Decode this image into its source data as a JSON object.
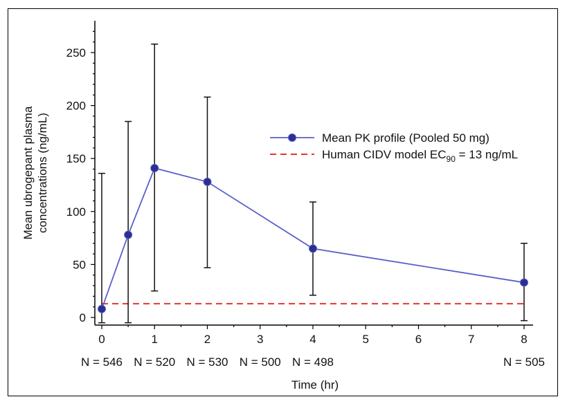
{
  "chart_data": {
    "type": "line",
    "title": "",
    "xlabel": "Time (hr)",
    "ylabel_line1": "Mean ubrogepant plasma",
    "ylabel_line2": "concentrations (ng/mL)",
    "xlim": [
      0,
      8
    ],
    "ylim": [
      0,
      250
    ],
    "x_ticks": [
      0,
      1,
      2,
      3,
      4,
      5,
      6,
      7,
      8
    ],
    "y_ticks": [
      0,
      50,
      100,
      150,
      200,
      250
    ],
    "grid": false,
    "legend_position": "right",
    "series": [
      {
        "name": "Mean PK profile (Pooled 50 mg)",
        "color": "#5a5fc8",
        "marker_color": "#2b2f8f",
        "x": [
          0,
          0.5,
          1,
          2,
          4,
          8
        ],
        "y": [
          8,
          78,
          141,
          128,
          65,
          33
        ],
        "err_low": [
          -5,
          -5,
          25,
          47,
          21,
          -3
        ],
        "err_high": [
          136,
          185,
          258,
          208,
          109,
          70
        ]
      }
    ],
    "reference_line": {
      "name_prefix": "Human CIDV model EC",
      "name_sub": "90",
      "name_suffix": " = 13 ng/mL",
      "y": 13,
      "color": "#e8332c"
    },
    "n_labels": [
      {
        "x": 0,
        "text": "N = 546"
      },
      {
        "x": 1,
        "text": "N = 520"
      },
      {
        "x": 2,
        "text": "N = 530"
      },
      {
        "x": 3,
        "text": "N = 500"
      },
      {
        "x": 4,
        "text": "N = 498"
      },
      {
        "x": 8,
        "text": "N = 505"
      }
    ]
  }
}
